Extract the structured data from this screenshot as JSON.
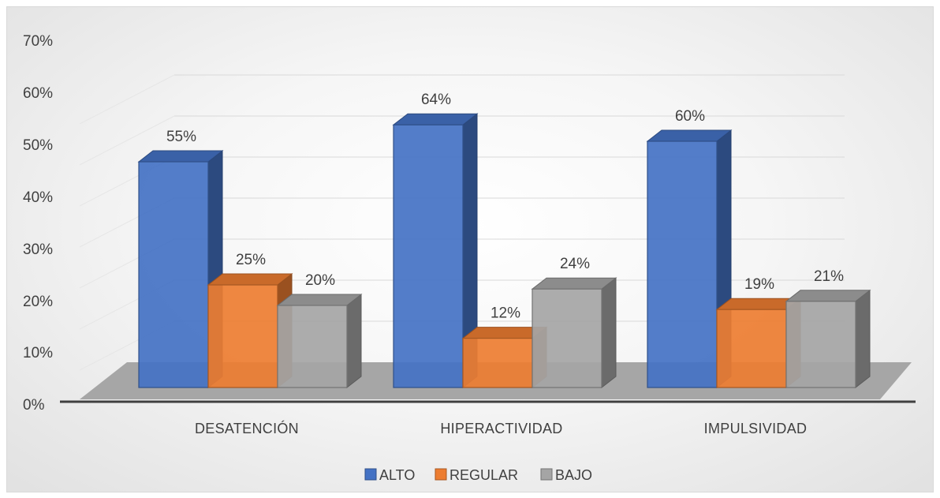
{
  "chart_data": {
    "type": "bar",
    "title": "",
    "xlabel": "",
    "ylabel": "",
    "ylim": [
      0,
      70
    ],
    "y_ticks": [
      "0%",
      "10%",
      "20%",
      "30%",
      "40%",
      "50%",
      "60%",
      "70%"
    ],
    "y_tick_values": [
      0,
      10,
      20,
      30,
      40,
      50,
      60,
      70
    ],
    "categories": [
      "DESATENCIÓN",
      "HIPERACTIVIDAD",
      "IMPULSIVIDAD"
    ],
    "series": [
      {
        "name": "ALTO",
        "values": [
          55,
          64,
          60
        ],
        "labels": [
          "55%",
          "64%",
          "60%"
        ],
        "color": "#4472C4"
      },
      {
        "name": "REGULAR",
        "values": [
          25,
          12,
          19
        ],
        "labels": [
          "25%",
          "12%",
          "19%"
        ],
        "color": "#ED7D31"
      },
      {
        "name": "BAJO",
        "values": [
          20,
          24,
          21
        ],
        "labels": [
          "20%",
          "24%",
          "21%"
        ],
        "color": "#A5A5A5"
      }
    ],
    "style": "3d-clustered-column",
    "grid": true,
    "legend_position": "bottom"
  }
}
